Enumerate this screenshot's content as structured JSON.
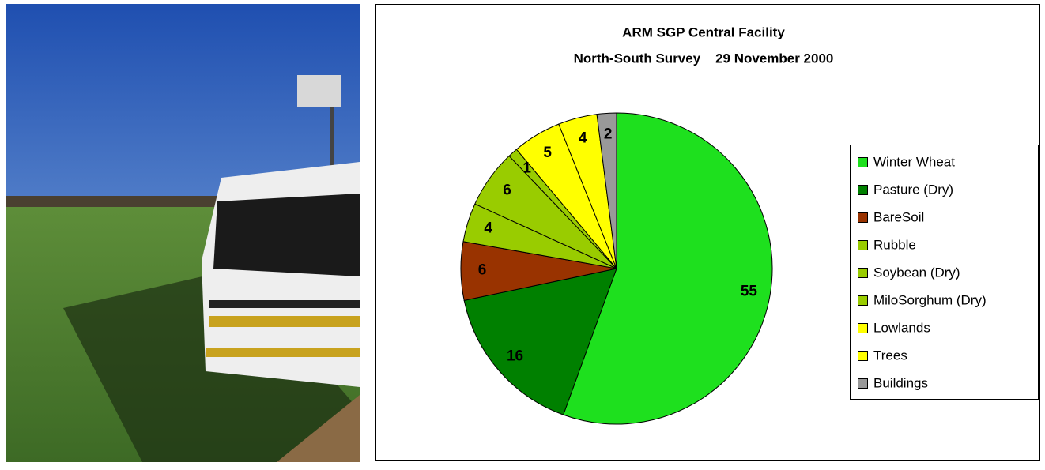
{
  "chart_data": {
    "type": "pie",
    "title": "ARM SGP Central Facility",
    "subtitle": "North-South Survey    29 November 2000",
    "categories": [
      "Winter Wheat",
      "Pasture (Dry)",
      "BareSoil",
      "Rubble",
      "Soybean (Dry)",
      "MiloSorghum (Dry)",
      "Lowlands",
      "Trees",
      "Buildings"
    ],
    "values": [
      55,
      16,
      6,
      4,
      6,
      1,
      5,
      4,
      2
    ],
    "colors": [
      "#1ee01e",
      "#008000",
      "#993300",
      "#99cc00",
      "#99cc00",
      "#99cc00",
      "#ffff00",
      "#ffff00",
      "#999999"
    ],
    "legend": "right"
  }
}
